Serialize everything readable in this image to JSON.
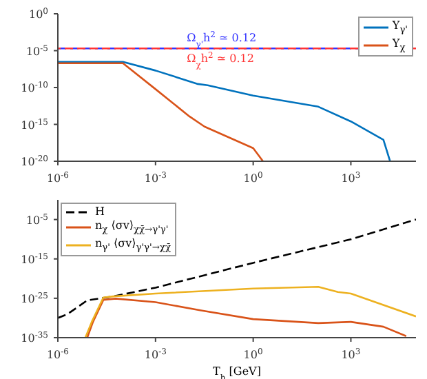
{
  "chart_data": [
    {
      "type": "line",
      "xlim": [
        1e-06,
        100000.0
      ],
      "ylim": [
        1e-20,
        1
      ],
      "log": "xy",
      "legend": "top right",
      "line_style": "solid",
      "xticks": [
        {
          "value": 1e-06,
          "label": "10$^{-6}$"
        },
        {
          "value": 0.001,
          "label": "10$^{-3}$"
        },
        {
          "value": 1,
          "label": "10$^{0}$"
        },
        {
          "value": 1000.0,
          "label": "10$^{3}$"
        }
      ],
      "yticks": [
        {
          "value": 1e-20,
          "label": "10$^{-20}$"
        },
        {
          "value": 1e-15,
          "label": "10$^{-15}$"
        },
        {
          "value": 1e-10,
          "label": "10$^{-10}$"
        },
        {
          "value": 1e-05,
          "label": "10$^{-5}$"
        },
        {
          "value": 1,
          "label": "10$^{0}$"
        }
      ],
      "ref_lines": [
        {
          "axis": "y",
          "value": 2e-05,
          "label": "Ω$_{γ'}$h$^{2}$ ≃ 0.12",
          "color": "#3333ff",
          "line_style": "dashed"
        },
        {
          "axis": "y",
          "value": 2e-05,
          "label": "Ω$_{χ}$h$^{2}$ ≃ 0.12",
          "color": "#ff3333",
          "line_style": "dashed"
        }
      ],
      "series": [
        {
          "name": "Y$_{γ'}$",
          "color": "#0072bd",
          "x": [
            1e-06,
            1e-05,
            0.0001,
            0.001,
            0.02,
            0.04,
            1,
            100,
            1000,
            10000.0,
            16000.0
          ],
          "values": [
            3e-07,
            3e-07,
            3e-07,
            2e-08,
            3e-10,
            2e-10,
            8e-12,
            2.5e-13,
            2.5e-15,
            8e-18,
            1e-20
          ]
        },
        {
          "name": "Y$_{χ}$",
          "color": "#d95319",
          "x": [
            1e-06,
            1e-05,
            0.0001,
            0.001,
            0.011,
            0.032,
            1,
            2
          ],
          "values": [
            2e-07,
            2e-07,
            2e-07,
            6e-11,
            1.2e-14,
            5e-16,
            6e-19,
            1e-20
          ]
        }
      ]
    },
    {
      "type": "line",
      "xlim": [
        1e-06,
        100000.0
      ],
      "ylim": [
        1e-35,
        1
      ],
      "log": "xy",
      "legend": "top left",
      "xlabel": "T$_{h}$ [GeV]",
      "xticks": [
        {
          "value": 1e-06,
          "label": "10$^{-6}$"
        },
        {
          "value": 0.001,
          "label": "10$^{-3}$"
        },
        {
          "value": 1,
          "label": "10$^{0}$"
        },
        {
          "value": 1000.0,
          "label": "10$^{3}$"
        }
      ],
      "yticks": [
        {
          "value": 1e-35,
          "label": "10$^{-35}$"
        },
        {
          "value": 1e-25,
          "label": "10$^{-25}$"
        },
        {
          "value": 1e-15,
          "label": "10$^{-15}$"
        },
        {
          "value": 1e-05,
          "label": "10$^{-5}$"
        }
      ],
      "series": [
        {
          "name": "H",
          "color": "#000000",
          "line_style": "dashed",
          "x": [
            1e-06,
            2e-06,
            8e-06,
            5e-05,
            0.001,
            1,
            1000.0,
            100000.0
          ],
          "values": [
            1e-30,
            1e-29,
            3e-26,
            3e-25,
            5e-23,
            1e-16,
            1e-10,
            1e-05
          ]
        },
        {
          "name": "n$_{χ}$ ⟨σv⟩$_{χχ̄→γ'γ'}$",
          "color": "#d95319",
          "line_style": "solid",
          "x": [
            8e-06,
            1.2e-05,
            2.5e-05,
            6e-05,
            0.001,
            0.025,
            1,
            100,
            1000,
            10000.0,
            50000.0
          ],
          "values": [
            1e-35,
            1e-31,
            4e-26,
            8e-26,
            1e-26,
            8e-29,
            5e-31,
            5e-32,
            1e-31,
            6e-33,
            2.5e-35
          ]
        },
        {
          "name": "n$_{γ'}$ ⟨σv⟩$_{γ'γ'→χχ̄}$",
          "color": "#edb120",
          "line_style": "solid",
          "x": [
            7e-06,
            1.1e-05,
            2.5e-05,
            5e-05,
            0.001,
            1,
            100,
            400,
            1000,
            100000.0
          ],
          "values": [
            1e-35,
            1e-31,
            1.6e-25,
            3e-25,
            1.6e-24,
            3e-23,
            8e-23,
            4e-24,
            1.6e-24,
            2.5e-30
          ]
        }
      ]
    }
  ]
}
